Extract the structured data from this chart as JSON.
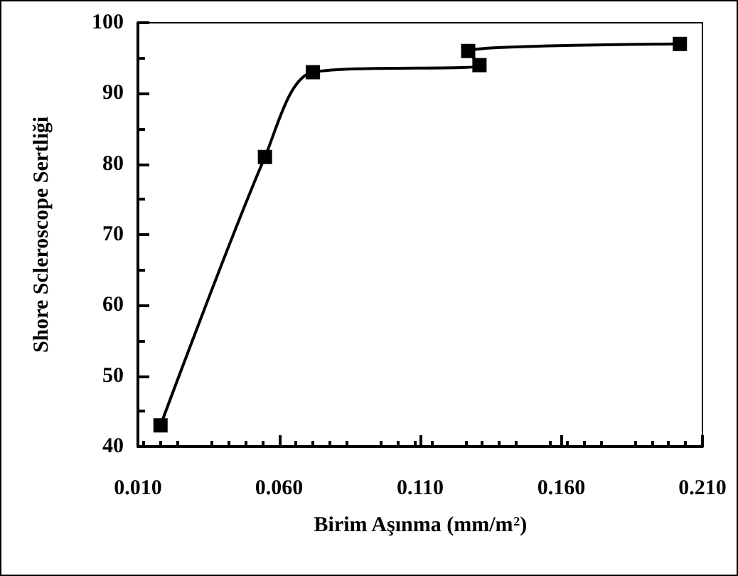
{
  "chart_data": {
    "type": "line",
    "xlabel": "Birim Aşınma (mm/m$^{2}$)",
    "ylabel": "Shore Scleroscope Sertliği",
    "x": [
      0.018,
      0.055,
      0.072,
      0.131,
      0.127,
      0.202
    ],
    "series": [
      {
        "color": "#000000",
        "values": [
          43,
          81,
          93,
          94,
          96,
          97
        ]
      }
    ],
    "xlim": [
      0.01,
      0.21
    ],
    "xticks": [
      {
        "value": 0.01,
        "label": "0.010"
      },
      {
        "value": 0.06,
        "label": "0.060"
      },
      {
        "value": 0.11,
        "label": "0.110"
      },
      {
        "value": 0.16,
        "label": "0.160"
      },
      {
        "value": 0.21,
        "label": "0.210"
      }
    ],
    "ylim": [
      40,
      100
    ],
    "yticks": [
      40,
      50,
      60,
      70,
      80,
      90,
      100
    ],
    "grid": false,
    "marker": "square",
    "line_style": "solid"
  }
}
